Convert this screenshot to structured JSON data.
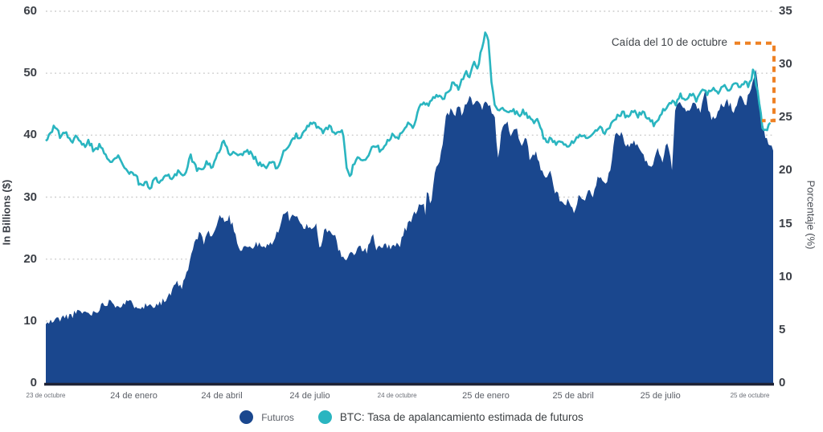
{
  "chart_data": {
    "type": "area",
    "title": "",
    "left_axis": {
      "label": "In Billions ($)",
      "range": [
        0,
        60
      ],
      "ticks": [
        0,
        10,
        20,
        30,
        40,
        50,
        60
      ]
    },
    "right_axis": {
      "label": "Porcentaje (%)",
      "range": [
        0,
        35
      ],
      "ticks": [
        0,
        5,
        10,
        15,
        20,
        25,
        30,
        35
      ]
    },
    "x_axis": {
      "ticks": [
        {
          "label": "23 de octubre",
          "pos": 0.0,
          "small": true
        },
        {
          "label": "24 de enero",
          "pos": 0.121,
          "small": false
        },
        {
          "label": "24 de abril",
          "pos": 0.242,
          "small": false
        },
        {
          "label": "24 de julio",
          "pos": 0.363,
          "small": false
        },
        {
          "label": "24 de octubre",
          "pos": 0.483,
          "small": true
        },
        {
          "label": "25 de enero",
          "pos": 0.605,
          "small": false
        },
        {
          "label": "25 de abril",
          "pos": 0.725,
          "small": false
        },
        {
          "label": "25 de julio",
          "pos": 0.845,
          "small": false
        },
        {
          "label": "25 de octubre",
          "pos": 0.968,
          "small": true
        }
      ]
    },
    "grid": "dotted horizontal lines at left-axis ticks",
    "series": [
      {
        "name": "Futuros",
        "type": "area",
        "axis": "left",
        "color": "#1a478e",
        "points": [
          [
            0.0,
            9.5
          ],
          [
            0.014,
            10.2
          ],
          [
            0.031,
            10.8
          ],
          [
            0.048,
            11.5
          ],
          [
            0.064,
            11.2
          ],
          [
            0.081,
            12.8
          ],
          [
            0.09,
            13.4
          ],
          [
            0.097,
            12.5
          ],
          [
            0.114,
            13.0
          ],
          [
            0.122,
            12.6
          ],
          [
            0.136,
            12.4
          ],
          [
            0.152,
            12.8
          ],
          [
            0.164,
            13.3
          ],
          [
            0.171,
            14.2
          ],
          [
            0.18,
            16.0
          ],
          [
            0.188,
            15.5
          ],
          [
            0.197,
            19.0
          ],
          [
            0.204,
            22.5
          ],
          [
            0.211,
            24.0
          ],
          [
            0.217,
            22.8
          ],
          [
            0.222,
            24.4
          ],
          [
            0.229,
            23.6
          ],
          [
            0.235,
            25.5
          ],
          [
            0.241,
            27.2
          ],
          [
            0.246,
            25.8
          ],
          [
            0.252,
            26.8
          ],
          [
            0.26,
            24.5
          ],
          [
            0.266,
            21.5
          ],
          [
            0.274,
            22.2
          ],
          [
            0.282,
            21.8
          ],
          [
            0.291,
            22.4
          ],
          [
            0.299,
            21.8
          ],
          [
            0.307,
            22.2
          ],
          [
            0.315,
            23.5
          ],
          [
            0.322,
            25.0
          ],
          [
            0.329,
            28.2
          ],
          [
            0.335,
            26.5
          ],
          [
            0.34,
            27.5
          ],
          [
            0.348,
            26.0
          ],
          [
            0.355,
            24.5
          ],
          [
            0.36,
            25.5
          ],
          [
            0.368,
            25.0
          ],
          [
            0.372,
            25.8
          ],
          [
            0.377,
            21.0
          ],
          [
            0.382,
            24.5
          ],
          [
            0.39,
            25.0
          ],
          [
            0.398,
            23.5
          ],
          [
            0.403,
            21.5
          ],
          [
            0.41,
            19.5
          ],
          [
            0.417,
            20.5
          ],
          [
            0.423,
            21.0
          ],
          [
            0.432,
            22.0
          ],
          [
            0.441,
            21.0
          ],
          [
            0.449,
            24.5
          ],
          [
            0.454,
            21.8
          ],
          [
            0.462,
            22.3
          ],
          [
            0.47,
            21.8
          ],
          [
            0.478,
            22.5
          ],
          [
            0.486,
            22.2
          ],
          [
            0.494,
            24.8
          ],
          [
            0.501,
            26.0
          ],
          [
            0.507,
            27.5
          ],
          [
            0.513,
            28.5
          ],
          [
            0.518,
            29.0
          ],
          [
            0.522,
            27.5
          ],
          [
            0.525,
            31.8
          ],
          [
            0.529,
            28.5
          ],
          [
            0.534,
            33.5
          ],
          [
            0.539,
            35.0
          ],
          [
            0.544,
            37.5
          ],
          [
            0.547,
            39.5
          ],
          [
            0.55,
            42.5
          ],
          [
            0.556,
            44.0
          ],
          [
            0.561,
            43.0
          ],
          [
            0.567,
            44.5
          ],
          [
            0.572,
            43.5
          ],
          [
            0.578,
            45.0
          ],
          [
            0.583,
            47.0
          ],
          [
            0.589,
            44.5
          ],
          [
            0.594,
            45.5
          ],
          [
            0.6,
            44.0
          ],
          [
            0.606,
            46.0
          ],
          [
            0.61,
            44.5
          ],
          [
            0.617,
            43.5
          ],
          [
            0.621,
            35.5
          ],
          [
            0.627,
            41.0
          ],
          [
            0.633,
            42.5
          ],
          [
            0.64,
            39.5
          ],
          [
            0.646,
            41.5
          ],
          [
            0.653,
            38.0
          ],
          [
            0.66,
            39.5
          ],
          [
            0.666,
            36.0
          ],
          [
            0.673,
            37.5
          ],
          [
            0.68,
            34.5
          ],
          [
            0.686,
            33.0
          ],
          [
            0.693,
            34.0
          ],
          [
            0.699,
            31.0
          ],
          [
            0.706,
            30.0
          ],
          [
            0.713,
            28.5
          ],
          [
            0.719,
            29.5
          ],
          [
            0.725,
            27.5
          ],
          [
            0.733,
            30.0
          ],
          [
            0.738,
            29.0
          ],
          [
            0.746,
            31.0
          ],
          [
            0.752,
            29.5
          ],
          [
            0.76,
            33.5
          ],
          [
            0.768,
            32.0
          ],
          [
            0.777,
            34.5
          ],
          [
            0.781,
            39.5
          ],
          [
            0.79,
            40.5
          ],
          [
            0.799,
            38.0
          ],
          [
            0.81,
            39.0
          ],
          [
            0.821,
            36.5
          ],
          [
            0.832,
            35.0
          ],
          [
            0.841,
            37.5
          ],
          [
            0.848,
            36.0
          ],
          [
            0.854,
            39.5
          ],
          [
            0.861,
            34.5
          ],
          [
            0.865,
            44.5
          ],
          [
            0.873,
            45.5
          ],
          [
            0.882,
            44.0
          ],
          [
            0.893,
            45.0
          ],
          [
            0.901,
            44.0
          ],
          [
            0.906,
            47.5
          ],
          [
            0.912,
            43.5
          ],
          [
            0.918,
            42.5
          ],
          [
            0.926,
            44.5
          ],
          [
            0.937,
            45.5
          ],
          [
            0.945,
            44.0
          ],
          [
            0.954,
            46.0
          ],
          [
            0.962,
            45.0
          ],
          [
            0.97,
            47.5
          ],
          [
            0.977,
            50.5
          ],
          [
            0.983,
            43.0
          ],
          [
            0.989,
            39.5
          ],
          [
            0.996,
            38.5
          ],
          [
            1.0,
            37.5
          ]
        ]
      },
      {
        "name": "BTC: Tasa de apalancamiento estimada de futuros",
        "type": "line",
        "axis": "right",
        "color": "#2ab5c0",
        "points": [
          [
            0.0,
            22.8
          ],
          [
            0.007,
            23.6
          ],
          [
            0.012,
            24.3
          ],
          [
            0.02,
            23.2
          ],
          [
            0.028,
            23.6
          ],
          [
            0.036,
            22.6
          ],
          [
            0.042,
            23.3
          ],
          [
            0.051,
            22.2
          ],
          [
            0.059,
            22.8
          ],
          [
            0.067,
            21.8
          ],
          [
            0.075,
            22.4
          ],
          [
            0.084,
            21.4
          ],
          [
            0.092,
            20.8
          ],
          [
            0.101,
            21.3
          ],
          [
            0.108,
            20.3
          ],
          [
            0.116,
            19.8
          ],
          [
            0.125,
            19.4
          ],
          [
            0.13,
            18.5
          ],
          [
            0.136,
            19.0
          ],
          [
            0.144,
            18.3
          ],
          [
            0.15,
            19.2
          ],
          [
            0.158,
            18.8
          ],
          [
            0.166,
            19.6
          ],
          [
            0.175,
            19.3
          ],
          [
            0.182,
            20.0
          ],
          [
            0.191,
            19.5
          ],
          [
            0.199,
            21.4
          ],
          [
            0.206,
            20.3
          ],
          [
            0.213,
            19.9
          ],
          [
            0.221,
            20.9
          ],
          [
            0.228,
            20.3
          ],
          [
            0.235,
            21.2
          ],
          [
            0.244,
            23.0
          ],
          [
            0.252,
            21.5
          ],
          [
            0.26,
            21.9
          ],
          [
            0.269,
            21.3
          ],
          [
            0.276,
            21.9
          ],
          [
            0.285,
            21.4
          ],
          [
            0.293,
            20.6
          ],
          [
            0.302,
            20.4
          ],
          [
            0.309,
            20.9
          ],
          [
            0.318,
            20.3
          ],
          [
            0.326,
            21.6
          ],
          [
            0.335,
            22.6
          ],
          [
            0.343,
            23.3
          ],
          [
            0.35,
            23.0
          ],
          [
            0.358,
            23.9
          ],
          [
            0.366,
            24.5
          ],
          [
            0.373,
            24.1
          ],
          [
            0.381,
            23.6
          ],
          [
            0.39,
            24.2
          ],
          [
            0.398,
            23.4
          ],
          [
            0.406,
            23.9
          ],
          [
            0.41,
            22.9
          ],
          [
            0.414,
            20.2
          ],
          [
            0.419,
            19.4
          ],
          [
            0.423,
            20.6
          ],
          [
            0.431,
            21.3
          ],
          [
            0.438,
            20.9
          ],
          [
            0.445,
            21.8
          ],
          [
            0.453,
            22.3
          ],
          [
            0.461,
            21.9
          ],
          [
            0.467,
            22.6
          ],
          [
            0.476,
            23.3
          ],
          [
            0.483,
            23.0
          ],
          [
            0.49,
            23.8
          ],
          [
            0.497,
            24.4
          ],
          [
            0.505,
            24.0
          ],
          [
            0.512,
            25.8
          ],
          [
            0.519,
            26.6
          ],
          [
            0.526,
            26.1
          ],
          [
            0.534,
            26.9
          ],
          [
            0.541,
            27.3
          ],
          [
            0.548,
            26.8
          ],
          [
            0.556,
            27.8
          ],
          [
            0.561,
            28.3
          ],
          [
            0.567,
            27.8
          ],
          [
            0.572,
            28.6
          ],
          [
            0.578,
            29.4
          ],
          [
            0.583,
            28.8
          ],
          [
            0.589,
            30.2
          ],
          [
            0.594,
            29.5
          ],
          [
            0.598,
            31.3
          ],
          [
            0.604,
            32.9
          ],
          [
            0.609,
            32.0
          ],
          [
            0.611,
            30.0
          ],
          [
            0.614,
            27.5
          ],
          [
            0.618,
            26.0
          ],
          [
            0.622,
            25.4
          ],
          [
            0.629,
            25.9
          ],
          [
            0.635,
            25.3
          ],
          [
            0.642,
            25.8
          ],
          [
            0.65,
            25.2
          ],
          [
            0.657,
            25.6
          ],
          [
            0.664,
            25.0
          ],
          [
            0.671,
            24.6
          ],
          [
            0.677,
            24.9
          ],
          [
            0.683,
            23.3
          ],
          [
            0.688,
            22.7
          ],
          [
            0.695,
            23.0
          ],
          [
            0.702,
            22.6
          ],
          [
            0.708,
            22.9
          ],
          [
            0.716,
            22.4
          ],
          [
            0.724,
            22.7
          ],
          [
            0.73,
            23.0
          ],
          [
            0.738,
            23.4
          ],
          [
            0.746,
            22.9
          ],
          [
            0.755,
            23.6
          ],
          [
            0.762,
            24.1
          ],
          [
            0.769,
            23.4
          ],
          [
            0.777,
            24.3
          ],
          [
            0.784,
            24.9
          ],
          [
            0.792,
            25.5
          ],
          [
            0.799,
            25.1
          ],
          [
            0.807,
            25.7
          ],
          [
            0.814,
            25.2
          ],
          [
            0.821,
            25.5
          ],
          [
            0.829,
            24.9
          ],
          [
            0.836,
            24.4
          ],
          [
            0.843,
            24.8
          ],
          [
            0.851,
            25.9
          ],
          [
            0.859,
            26.6
          ],
          [
            0.865,
            26.2
          ],
          [
            0.873,
            27.1
          ],
          [
            0.881,
            26.7
          ],
          [
            0.887,
            27.3
          ],
          [
            0.895,
            26.6
          ],
          [
            0.903,
            27.7
          ],
          [
            0.909,
            27.3
          ],
          [
            0.917,
            27.9
          ],
          [
            0.925,
            27.4
          ],
          [
            0.931,
            28.0
          ],
          [
            0.939,
            27.6
          ],
          [
            0.947,
            28.2
          ],
          [
            0.954,
            27.8
          ],
          [
            0.96,
            28.4
          ],
          [
            0.967,
            27.9
          ],
          [
            0.973,
            29.5
          ],
          [
            0.98,
            27.0
          ],
          [
            0.985,
            24.1
          ],
          [
            0.99,
            23.8
          ],
          [
            0.996,
            24.5
          ]
        ]
      }
    ],
    "legend": {
      "position": "bottom-center",
      "items": [
        {
          "label": "Futuros",
          "color": "#1a478e"
        },
        {
          "label": "BTC: Tasa de apalancamiento estimada de futuros",
          "color": "#2ab5c0"
        }
      ]
    },
    "annotation": {
      "text": "Caída del 10 de octubre",
      "color": "#ee8124",
      "bracket": {
        "axis": "right",
        "from_pct": 32.0,
        "to_pct": 24.7
      }
    },
    "render": {
      "samples": 460,
      "seed": 11,
      "jitter_area": 0.6,
      "jitter_line": 0.25
    }
  }
}
